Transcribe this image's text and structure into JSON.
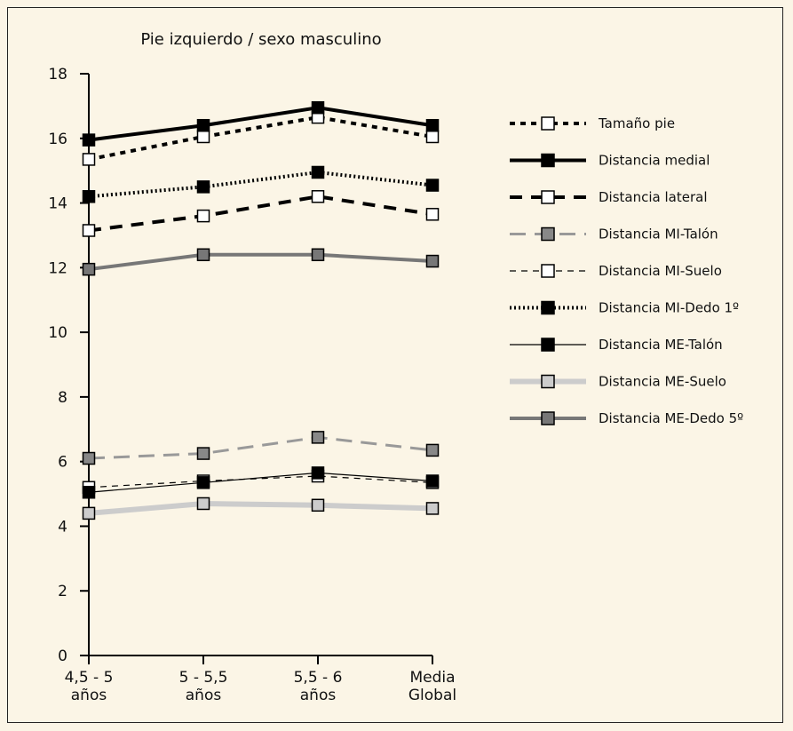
{
  "chart_data": {
    "type": "line",
    "title": "Pie izquierdo / sexo masculino",
    "categories": [
      "4,5 - 5\naños",
      "5 - 5,5\naños",
      "5,5 - 6\naños",
      "Media\nGlobal"
    ],
    "ylim": [
      0,
      18
    ],
    "yticks": [
      0,
      2,
      4,
      6,
      8,
      10,
      12,
      14,
      16,
      18
    ],
    "grid": false,
    "legend_position": "right",
    "series": [
      {
        "name": "Tamaño pie",
        "values": [
          15.35,
          16.05,
          16.65,
          16.05
        ],
        "color": "#000000",
        "stroke_width": 4,
        "dash": "6,6",
        "marker_fill": "#ffffff"
      },
      {
        "name": "Distancia medial",
        "values": [
          15.95,
          16.4,
          16.95,
          16.4
        ],
        "color": "#000000",
        "stroke_width": 4,
        "dash": "",
        "marker_fill": "#000000"
      },
      {
        "name": "Distancia lateral",
        "values": [
          13.15,
          13.6,
          14.2,
          13.65
        ],
        "color": "#000000",
        "stroke_width": 4,
        "dash": "14,10",
        "marker_fill": "#ffffff"
      },
      {
        "name": "Distancia MI-Talón",
        "values": [
          6.1,
          6.25,
          6.75,
          6.35
        ],
        "color": "#999999",
        "stroke_width": 3,
        "dash": "18,10",
        "marker_fill": "#888888"
      },
      {
        "name": "Distancia MI-Suelo",
        "values": [
          5.2,
          5.4,
          5.55,
          5.35
        ],
        "color": "#000000",
        "stroke_width": 1.2,
        "dash": "7,6",
        "marker_fill": "#ffffff"
      },
      {
        "name": "Distancia MI-Dedo 1º",
        "values": [
          14.2,
          14.5,
          14.95,
          14.55
        ],
        "color": "#000000",
        "stroke_width": 4,
        "dash": "2,3",
        "marker_fill": "#000000"
      },
      {
        "name": "Distancia ME-Talón",
        "values": [
          5.05,
          5.35,
          5.65,
          5.4
        ],
        "color": "#000000",
        "stroke_width": 1.2,
        "dash": "",
        "marker_fill": "#000000"
      },
      {
        "name": "Distancia ME-Suelo",
        "values": [
          4.4,
          4.7,
          4.65,
          4.55
        ],
        "color": "#cccccc",
        "stroke_width": 6,
        "dash": "",
        "marker_fill": "#cccccc"
      },
      {
        "name": "Distancia ME-Dedo 5º",
        "values": [
          11.95,
          12.4,
          12.4,
          12.2
        ],
        "color": "#777777",
        "stroke_width": 4,
        "dash": "",
        "marker_fill": "#777777"
      }
    ]
  }
}
